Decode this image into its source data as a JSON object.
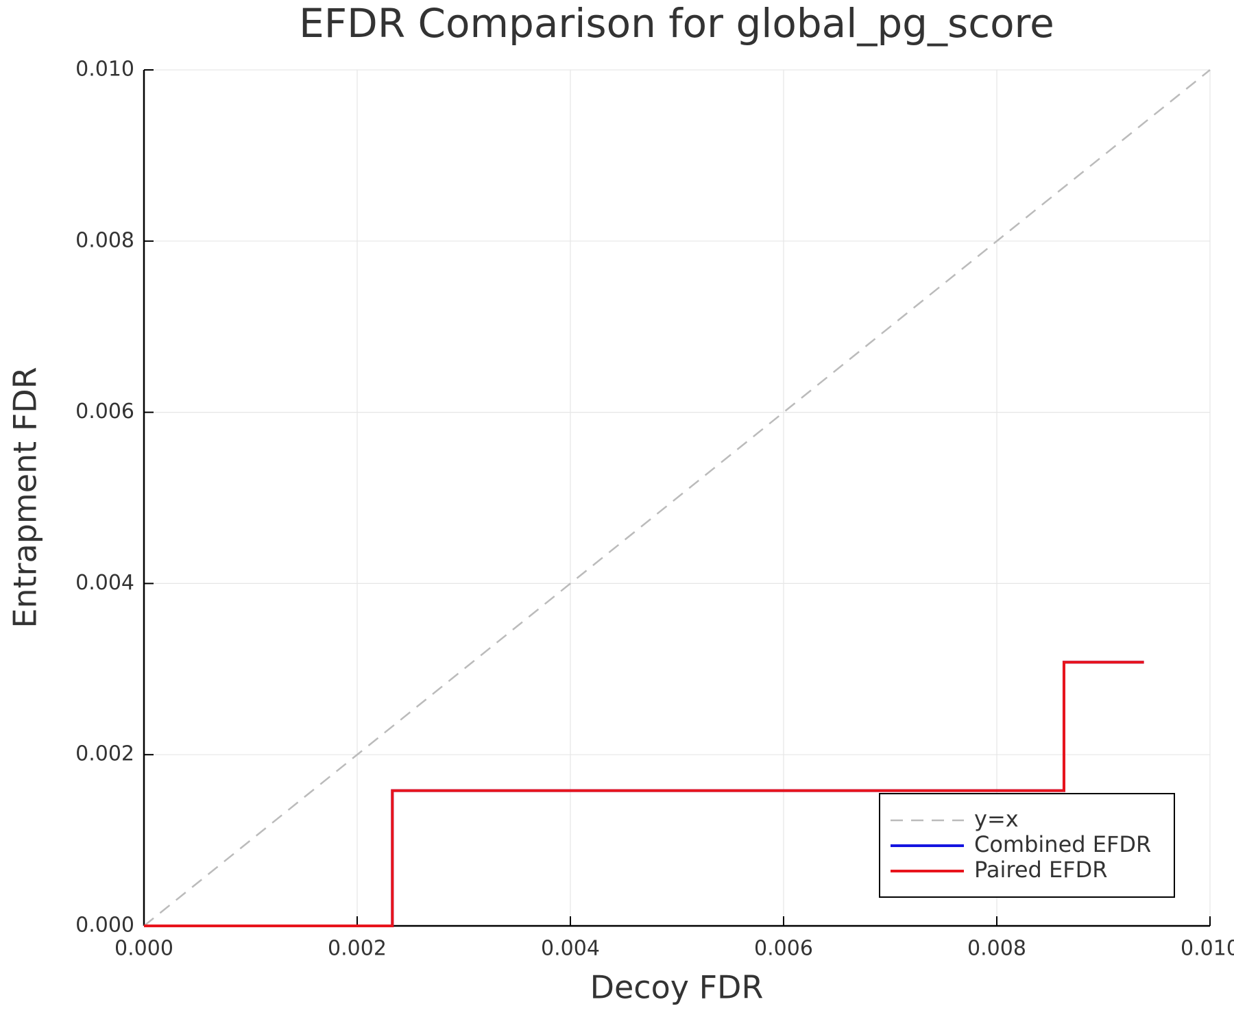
{
  "chart_data": {
    "type": "line",
    "title": "EFDR Comparison for global_pg_score",
    "x_label": "Decoy FDR",
    "y_label": "Entrapment FDR",
    "xlim": [
      0,
      0.01
    ],
    "ylim": [
      0,
      0.01
    ],
    "xticks": [
      {
        "value": 0,
        "label": "0.000"
      },
      0.002,
      0.004,
      0.006,
      0.008,
      {
        "value": 0.01,
        "label": "0.010"
      }
    ],
    "yticks": [
      {
        "value": 0,
        "label": "0.000"
      },
      0.002,
      0.004,
      0.006,
      0.008,
      {
        "value": 0.01,
        "label": "0.010"
      }
    ],
    "grid": true,
    "legend": "bottom-right",
    "series": [
      {
        "name": "y=x",
        "color": "#bbbbbb",
        "dashed": true,
        "x": [
          0,
          0.01
        ],
        "values": [
          0,
          0.01
        ]
      },
      {
        "name": "Combined EFDR",
        "color": "#1515e0",
        "dashed": false,
        "x": [
          0,
          0.00233,
          0.00233,
          0.00863,
          0.00863,
          0.00938
        ],
        "values": [
          0,
          0,
          0.00158,
          0.00158,
          0.00308,
          0.00308
        ]
      },
      {
        "name": "Paired EFDR",
        "color": "#e8141c",
        "dashed": false,
        "x": [
          0,
          0.00233,
          0.00233,
          0.00863,
          0.00863,
          0.00938
        ],
        "values": [
          0,
          0,
          0.00158,
          0.00158,
          0.00308,
          0.00308
        ]
      }
    ]
  }
}
